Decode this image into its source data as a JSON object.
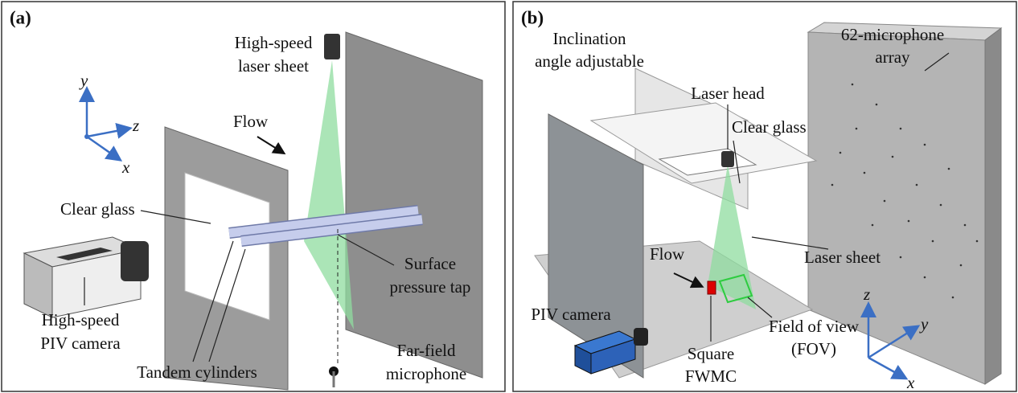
{
  "panels": [
    {
      "tag": "(a)",
      "laser": [
        "High-speed",
        "laser sheet"
      ],
      "axes": {
        "y": "y",
        "z": "z",
        "x": "x"
      },
      "flow": "Flow",
      "clear_glass": "Clear glass",
      "pressure_tap": [
        "Surface",
        "pressure tap"
      ],
      "camera": [
        "High-speed",
        "PIV camera"
      ],
      "cylinders": "Tandem cylinders",
      "microphone": [
        "Far-field",
        "microphone"
      ]
    },
    {
      "tag": "(b)",
      "array": [
        "62-microphone",
        "array"
      ],
      "inclination": [
        "Inclination",
        "angle adjustable"
      ],
      "laser_head": "Laser head",
      "clear_glass": "Clear glass",
      "laser_sheet": "Laser sheet",
      "flow": "Flow",
      "camera": "PIV camera",
      "fwmc": [
        "Square",
        "FWMC"
      ],
      "fov": [
        "Field of view",
        "(FOV)"
      ],
      "axes": {
        "z": "z",
        "y": "y",
        "x": "x"
      }
    }
  ]
}
